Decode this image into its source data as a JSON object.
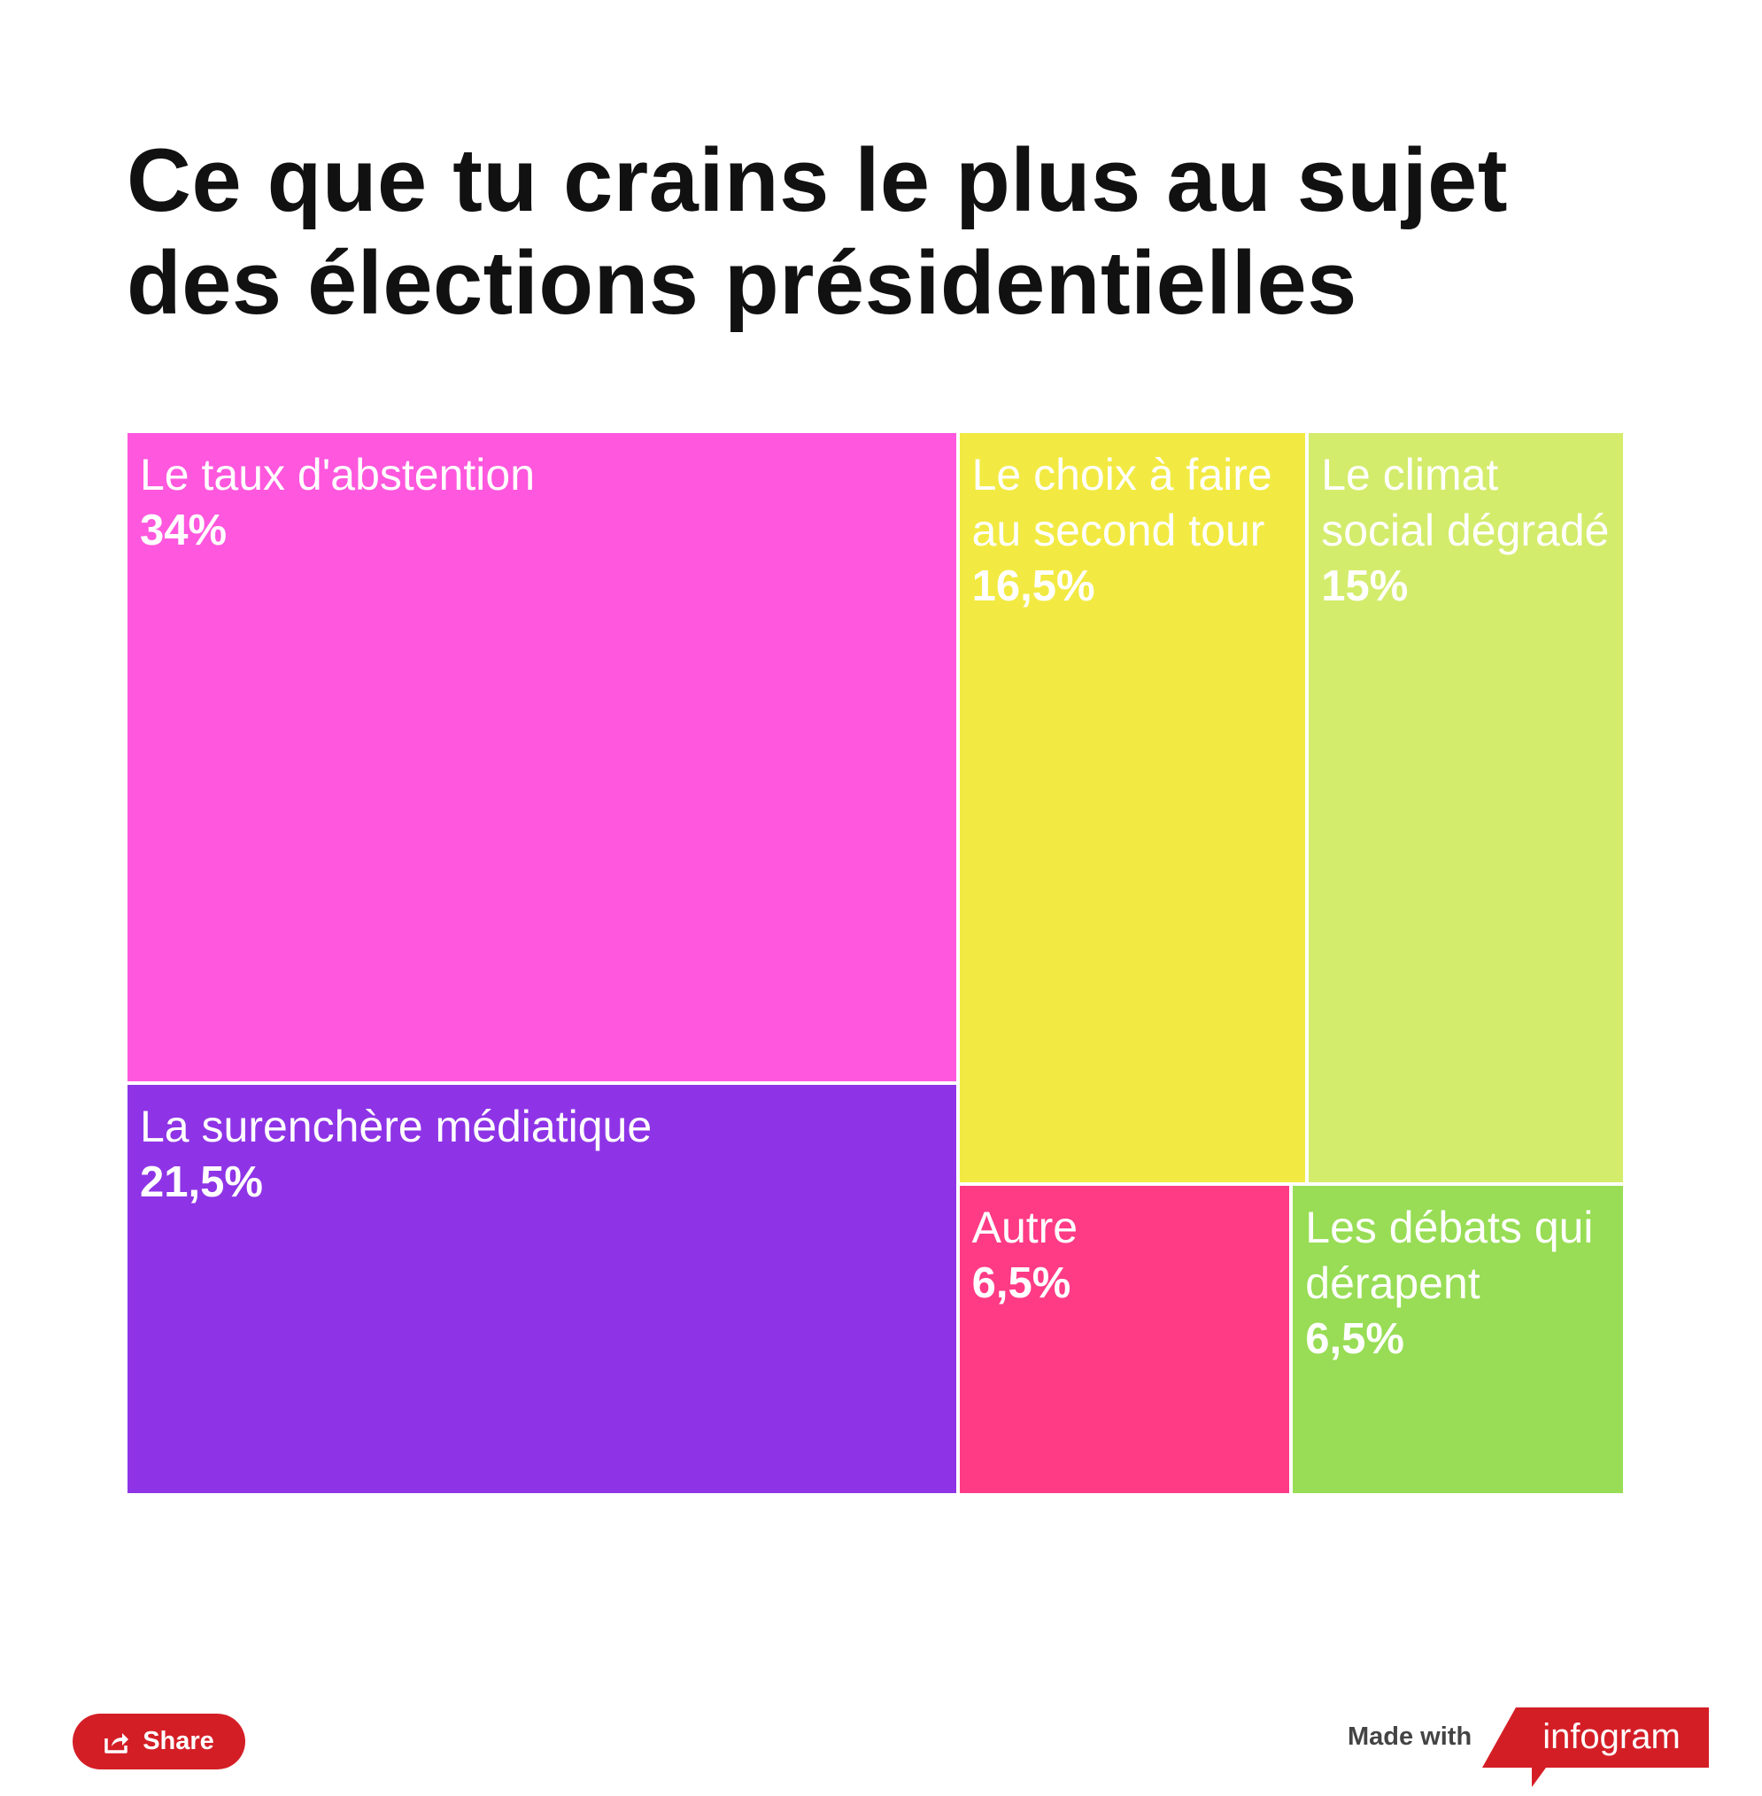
{
  "title": "Ce que tu crains le plus au sujet des élections présidentielles",
  "chart_data": {
    "type": "treemap",
    "items": [
      {
        "label": "Le taux d'abstention",
        "value": 34,
        "value_label": "34%",
        "color": "#ff57de"
      },
      {
        "label": "La surenchère médiatique",
        "value": 21.5,
        "value_label": "21,5%",
        "color": "#8e34e6"
      },
      {
        "label": "Le choix à faire au second tour",
        "value": 16.5,
        "value_label": "16,5%",
        "color": "#f2ea42"
      },
      {
        "label": "Le climat social dégradé",
        "value": 15,
        "value_label": "15%",
        "color": "#d3ec6c"
      },
      {
        "label": "Autre",
        "value": 6.5,
        "value_label": "6,5%",
        "color": "#ff3b86"
      },
      {
        "label": "Les débats qui dérapent",
        "value": 6.5,
        "value_label": "6,5%",
        "color": "#98dd55"
      }
    ]
  },
  "footer": {
    "share_label": "Share",
    "made_with_label": "Made with",
    "brand_label": "infogram",
    "brand_color": "#d41e26",
    "share_icon": "share-icon"
  }
}
